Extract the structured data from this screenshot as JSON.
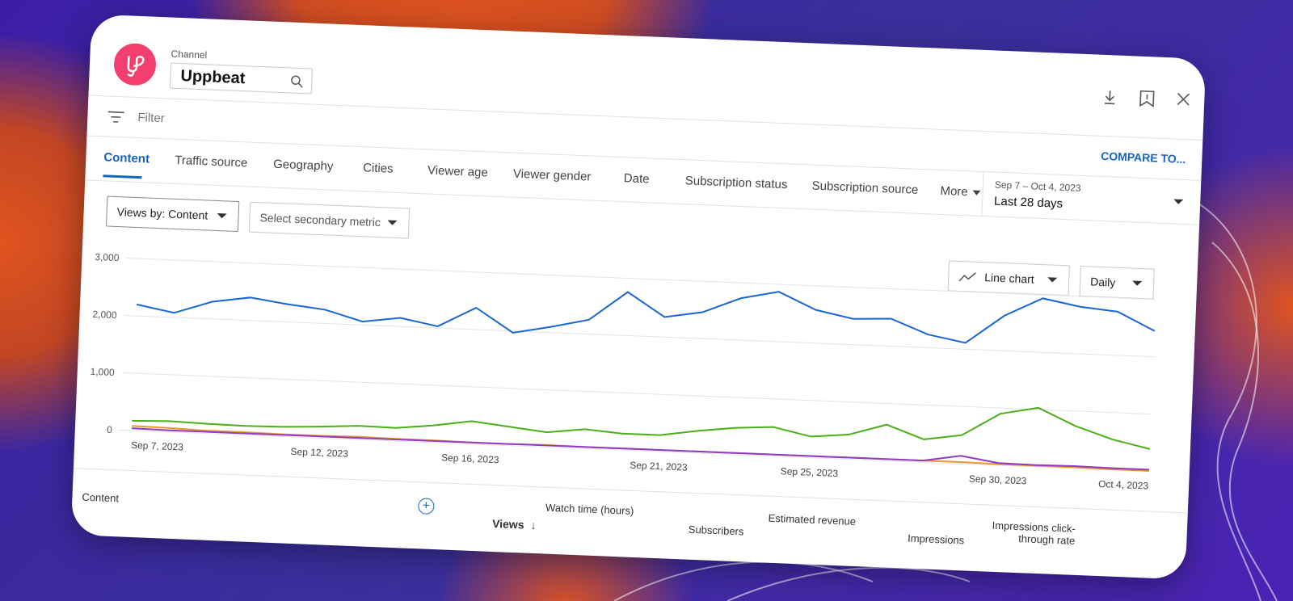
{
  "header": {
    "channel_label": "Channel",
    "channel_name": "Uppbeat"
  },
  "filter": {
    "placeholder": "Filter",
    "compare": "COMPARE TO..."
  },
  "tabs": [
    "Content",
    "Traffic source",
    "Geography",
    "Cities",
    "Viewer age",
    "Viewer gender",
    "Date",
    "Subscription status",
    "Subscription source",
    "More"
  ],
  "date_range": {
    "range": "Sep 7 – Oct 4, 2023",
    "label": "Last 28 days"
  },
  "controls": {
    "metric": "Views by: Content",
    "secondary": "Select secondary metric",
    "chart_type": "Line chart",
    "interval": "Daily"
  },
  "chart_data": {
    "type": "line",
    "categories": [
      "Sep 7, 2023",
      null,
      null,
      null,
      null,
      "Sep 12, 2023",
      null,
      null,
      null,
      "Sep 16, 2023",
      null,
      null,
      null,
      null,
      "Sep 21, 2023",
      null,
      null,
      null,
      "Sep 25, 2023",
      null,
      null,
      null,
      null,
      "Sep 30, 2023",
      null,
      null,
      null,
      "Oct 4, 2023"
    ],
    "ylim": [
      0,
      3000
    ],
    "yticks": [
      0,
      {
        "value": 1000,
        "label": "1,000"
      },
      {
        "value": 2000,
        "label": "2,000"
      },
      {
        "value": 3000,
        "label": "3,000"
      }
    ],
    "grid": true,
    "series": [
      {
        "color": "#1a66d6",
        "values": [
          2200,
          2080,
          2300,
          2400,
          2310,
          2240,
          2060,
          2150,
          2030,
          2380,
          1970,
          2100,
          2250,
          2760,
          2350,
          2460,
          2730,
          2870,
          2580,
          2450,
          2480,
          2230,
          2110,
          2610,
          2940,
          2820,
          2760,
          2450
        ]
      },
      {
        "color": "#4caf1a",
        "values": [
          170,
          190,
          170,
          160,
          170,
          200,
          240,
          230,
          300,
          400,
          330,
          260,
          340,
          290,
          290,
          390,
          470,
          510,
          370,
          430,
          630,
          400,
          500,
          900,
          1030,
          740,
          530,
          390
        ]
      },
      {
        "color": "#f0962e",
        "values": [
          80,
          70,
          50,
          50,
          40,
          40,
          50,
          40,
          40,
          30,
          30,
          40,
          30,
          30,
          30,
          30,
          30,
          30,
          30,
          30,
          30,
          30,
          30,
          20,
          20,
          20,
          10,
          10
        ]
      },
      {
        "color": "#8e3cc8",
        "values": [
          40,
          30,
          30,
          30,
          30,
          30,
          30,
          30,
          30,
          30,
          30,
          30,
          30,
          30,
          30,
          30,
          30,
          30,
          30,
          30,
          30,
          30,
          140,
          40,
          30,
          40,
          30,
          30
        ]
      }
    ]
  },
  "table": {
    "headers": [
      "Content",
      "Views",
      "Watch time (hours)",
      "Subscribers",
      "Estimated revenue",
      "Impressions",
      "Impressions click-through rate"
    ]
  }
}
